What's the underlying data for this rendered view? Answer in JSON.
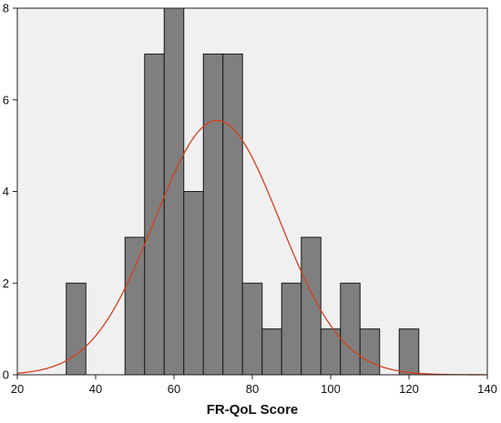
{
  "chart_data": {
    "type": "bar",
    "subtype": "histogram",
    "title": "",
    "xlabel": "FR-QoL Score",
    "ylabel": "",
    "xlim": [
      20,
      140
    ],
    "ylim": [
      0,
      8
    ],
    "x_ticks": [
      "20",
      "40",
      "60",
      "80",
      "100",
      "120",
      "140"
    ],
    "y_ticks": [
      "0",
      "2",
      "4",
      "6",
      "8"
    ],
    "bin_width": 5,
    "bins": [
      {
        "start": 32.5,
        "end": 37.5,
        "count": 2
      },
      {
        "start": 47.5,
        "end": 52.5,
        "count": 3
      },
      {
        "start": 52.5,
        "end": 57.5,
        "count": 7
      },
      {
        "start": 57.5,
        "end": 62.5,
        "count": 8
      },
      {
        "start": 62.5,
        "end": 67.5,
        "count": 4
      },
      {
        "start": 67.5,
        "end": 72.5,
        "count": 7
      },
      {
        "start": 72.5,
        "end": 77.5,
        "count": 7
      },
      {
        "start": 77.5,
        "end": 82.5,
        "count": 2
      },
      {
        "start": 82.5,
        "end": 87.5,
        "count": 1
      },
      {
        "start": 87.5,
        "end": 92.5,
        "count": 2
      },
      {
        "start": 92.5,
        "end": 97.5,
        "count": 3
      },
      {
        "start": 97.5,
        "end": 102.5,
        "count": 1
      },
      {
        "start": 102.5,
        "end": 107.5,
        "count": 2
      },
      {
        "start": 107.5,
        "end": 112.5,
        "count": 1
      },
      {
        "start": 117.5,
        "end": 122.5,
        "count": 1
      }
    ],
    "normal_curve": {
      "mean": 71,
      "sd": 16,
      "peak": 5.55
    },
    "grid": false,
    "colors": {
      "plot_background": "#f0f0f0",
      "bar_fill": "#7f7f7f",
      "bar_stroke": "#1a1a1a",
      "curve": "#d33f1f"
    }
  }
}
